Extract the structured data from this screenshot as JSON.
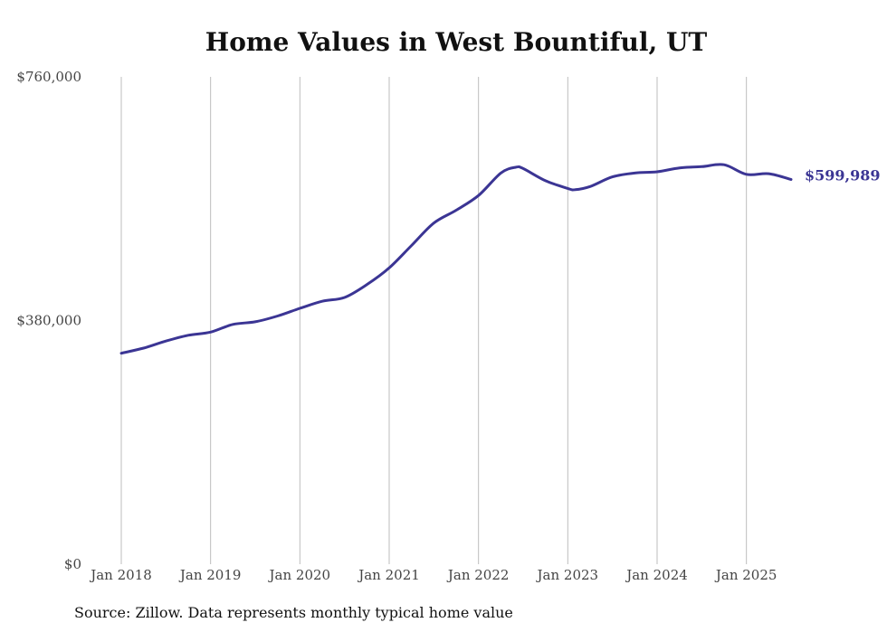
{
  "chart_data": {
    "type": "line",
    "title": "Home Values in West Bountiful, UT",
    "source": "Source: Zillow. Data represents monthly typical home value",
    "xlabel": "",
    "ylabel": "",
    "ylim": [
      0,
      760000
    ],
    "y_ticks": [
      {
        "value": 0,
        "label": "$0"
      },
      {
        "value": 380000,
        "label": "$380,000"
      },
      {
        "value": 760000,
        "label": "$760,000"
      }
    ],
    "x_ticks": [
      {
        "value": "2018-01",
        "label": "Jan 2018"
      },
      {
        "value": "2019-01",
        "label": "Jan 2019"
      },
      {
        "value": "2020-01",
        "label": "Jan 2020"
      },
      {
        "value": "2021-01",
        "label": "Jan 2021"
      },
      {
        "value": "2022-01",
        "label": "Jan 2022"
      },
      {
        "value": "2023-01",
        "label": "Jan 2023"
      },
      {
        "value": "2024-01",
        "label": "Jan 2024"
      },
      {
        "value": "2025-01",
        "label": "Jan 2025"
      }
    ],
    "xlim": [
      "2018-01",
      "2025-07"
    ],
    "grid": "vertical",
    "line_color": "#3b3594",
    "end_label": "$599,989",
    "series": [
      {
        "x": [
          "2018-01",
          "2018-04",
          "2018-07",
          "2018-10",
          "2019-01",
          "2019-04",
          "2019-07",
          "2019-10",
          "2020-01",
          "2020-04",
          "2020-07",
          "2020-10",
          "2021-01",
          "2021-04",
          "2021-07",
          "2021-10",
          "2022-01",
          "2022-04",
          "2022-06",
          "2022-07",
          "2022-10",
          "2023-01",
          "2023-02",
          "2023-04",
          "2023-07",
          "2023-10",
          "2024-01",
          "2024-04",
          "2024-07",
          "2024-10",
          "2025-01",
          "2025-04",
          "2025-07"
        ],
        "values": [
          329000,
          337000,
          348000,
          357000,
          362000,
          374000,
          378000,
          387000,
          399000,
          410000,
          416000,
          436000,
          462000,
          497000,
          532000,
          552000,
          575000,
          610000,
          619000,
          617000,
          598000,
          586000,
          584000,
          589000,
          604000,
          610000,
          612000,
          618000,
          620000,
          623000,
          608000,
          609000,
          599989
        ]
      }
    ]
  }
}
